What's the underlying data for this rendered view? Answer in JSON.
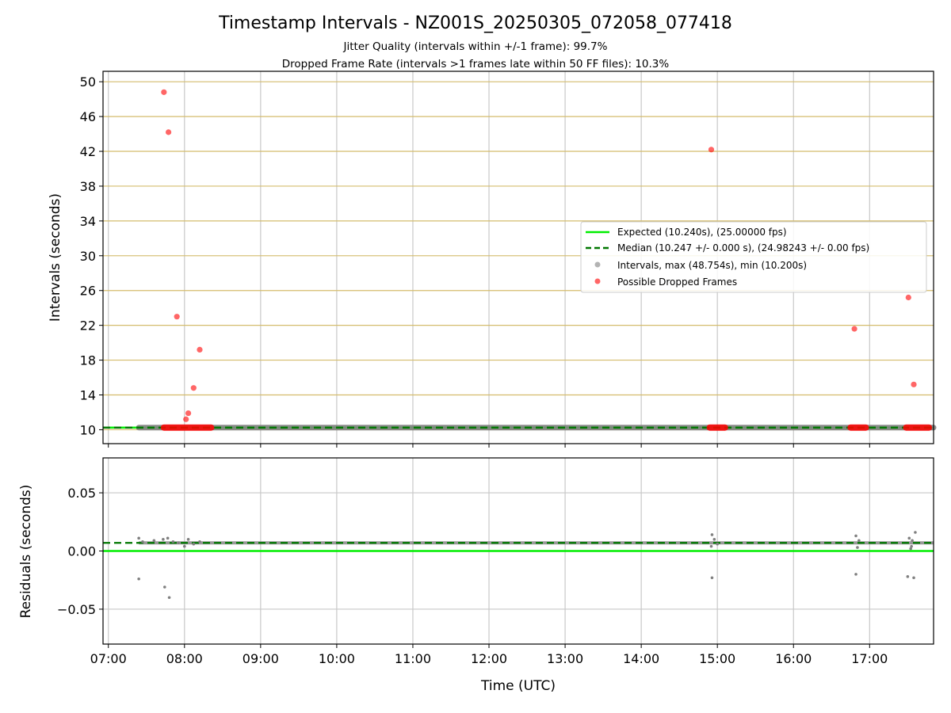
{
  "title": "Timestamp Intervals - NZ001S_20250305_072058_077418",
  "subtitle_1": "Jitter Quality (intervals within +/-1 frame): 99.7%",
  "subtitle_2": "Dropped Frame Rate (intervals >1 frames late within 50 FF files): 10.3%",
  "colors": {
    "expected": "#00ee00",
    "median": "#007700",
    "intervals": "#808080",
    "dropped": "#ff0000",
    "hgrid_top": "#d4bc6c",
    "grid": "#c8c8c8"
  },
  "chart_data": [
    {
      "type": "scatter",
      "ylabel": "Intervals (seconds)",
      "ylim": [
        8.4,
        51.2
      ],
      "yticks": [
        10,
        14,
        18,
        22,
        26,
        30,
        34,
        38,
        42,
        46,
        50
      ],
      "ytick_labels": [
        "10",
        "14",
        "18",
        "22",
        "26",
        "30",
        "34",
        "38",
        "42",
        "46",
        "50"
      ],
      "xlim_hours": [
        6.93,
        17.84
      ],
      "grid": true,
      "legend_position": "center-right",
      "legend": [
        "Expected (10.240s), (25.00000 fps)",
        "Median (10.247 +/- 0.000 s), (24.98243 +/- 0.00 fps)",
        "Intervals, max (48.754s), min (10.200s)",
        "Possible Dropped Frames"
      ],
      "expected_interval": 10.24,
      "median_interval": 10.247,
      "intervals_time_range_hours": [
        7.4,
        17.84
      ],
      "dropped_frames": {
        "times_hours": [
          7.73,
          7.79,
          7.9,
          8.02,
          8.05,
          8.12,
          8.2,
          14.92,
          16.8,
          17.51,
          17.58
        ],
        "values": [
          48.8,
          44.2,
          23.0,
          11.2,
          11.9,
          14.8,
          19.2,
          42.2,
          21.6,
          25.2,
          15.2
        ]
      },
      "dropped_clusters_at_baseline_hours": [
        [
          7.73,
          8.35
        ],
        [
          14.9,
          15.1
        ],
        [
          16.75,
          16.95
        ],
        [
          17.48,
          17.78
        ]
      ]
    },
    {
      "type": "scatter",
      "xlabel": "Time (UTC)",
      "ylabel": "Residuals (seconds)",
      "ylim": [
        -0.08,
        0.08
      ],
      "yticks": [
        -0.05,
        0.0,
        0.05
      ],
      "ytick_labels": [
        "−0.05",
        "0.00",
        "0.05"
      ],
      "xticks_hours": [
        7,
        8,
        9,
        10,
        11,
        12,
        13,
        14,
        15,
        16,
        17
      ],
      "xtick_labels": [
        "07:00",
        "08:00",
        "09:00",
        "10:00",
        "11:00",
        "12:00",
        "13:00",
        "14:00",
        "15:00",
        "16:00",
        "17:00"
      ],
      "xlim_hours": [
        6.93,
        17.84
      ],
      "grid": true,
      "expected_residual": 0.0,
      "median_residual": 0.007,
      "residual_points": {
        "times_hours": [
          7.4,
          7.4,
          7.74,
          7.8,
          7.45,
          7.6,
          7.72,
          7.78,
          7.85,
          7.92,
          8.0,
          8.05,
          8.12,
          8.2,
          14.93,
          14.93,
          14.92,
          14.96,
          15.0,
          16.82,
          16.82,
          16.84,
          16.86,
          17.5,
          17.58,
          17.52,
          17.55,
          17.6,
          17.56,
          17.54
        ],
        "values": [
          -0.024,
          0.011,
          -0.031,
          -0.04,
          0.008,
          0.009,
          0.01,
          0.011,
          0.008,
          0.007,
          0.004,
          0.01,
          0.006,
          0.008,
          0.014,
          -0.023,
          0.004,
          0.01,
          0.006,
          0.013,
          -0.02,
          0.003,
          0.009,
          -0.022,
          -0.023,
          0.011,
          0.004,
          0.016,
          0.009,
          0.002
        ]
      }
    }
  ]
}
